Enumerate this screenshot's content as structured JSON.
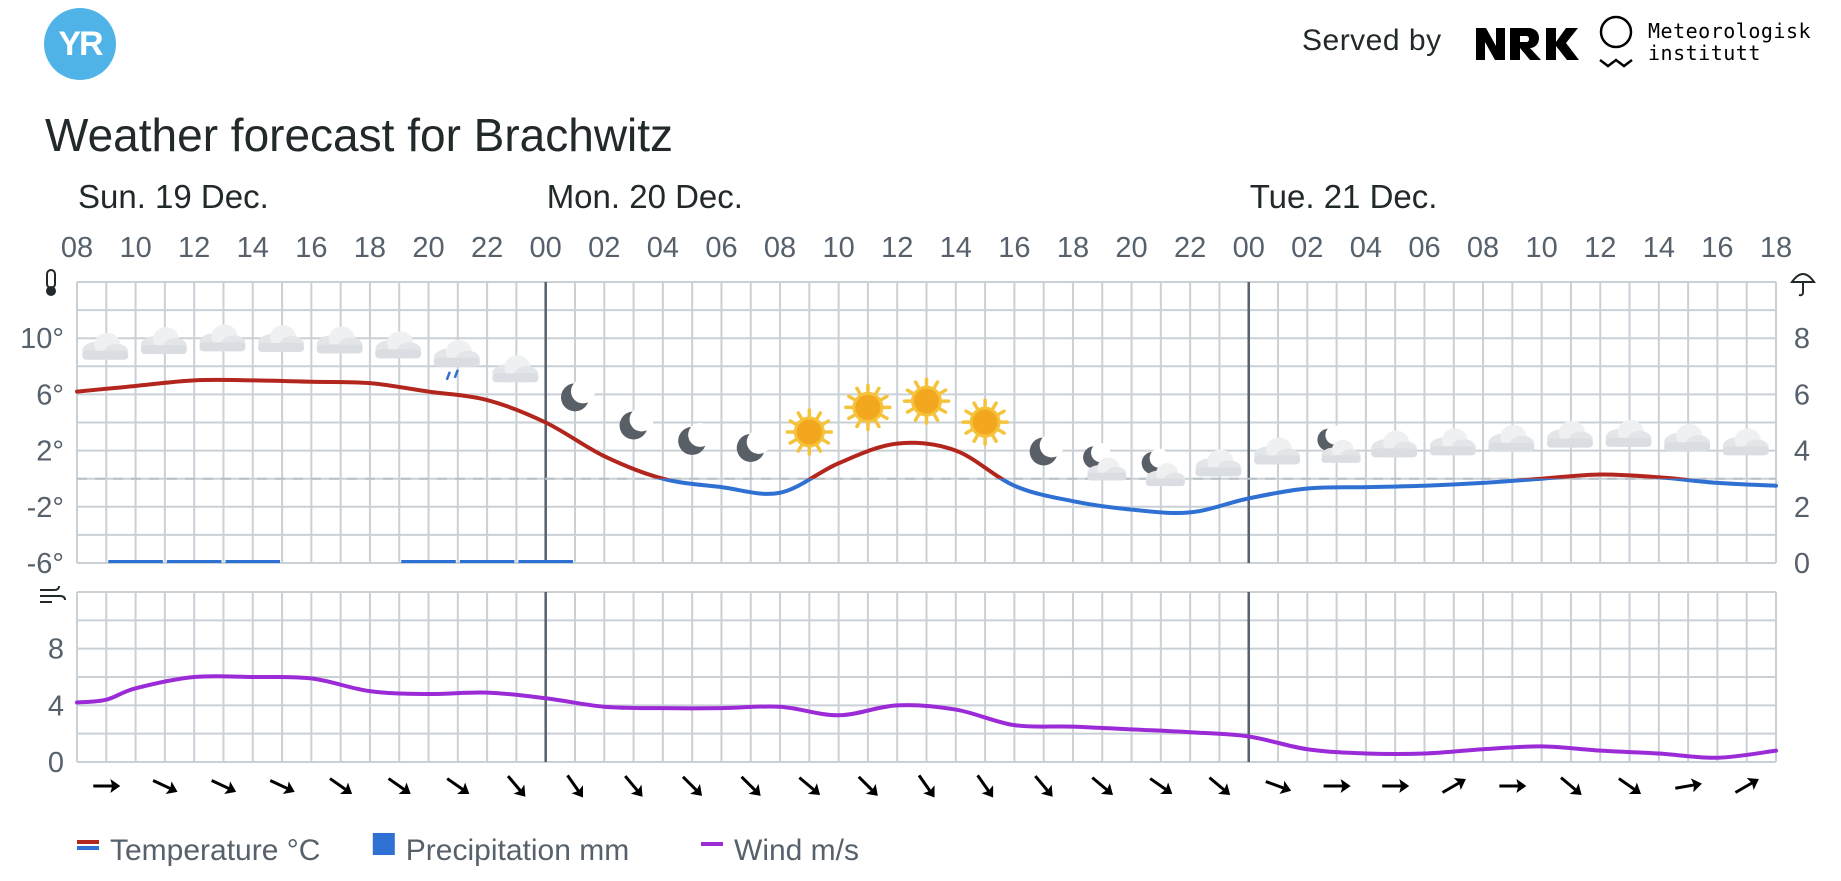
{
  "header": {
    "logo_text": "YR",
    "served_by": "Served by",
    "nrk_logo": "NRK",
    "met_line1": "Meteorologisk",
    "met_line2": "institutt"
  },
  "title": "Weather forecast for Brachwitz",
  "chart_data": {
    "type": "line",
    "days": [
      {
        "label": "Sun. 19 Dec.",
        "index": 0
      },
      {
        "label": "Mon. 20 Dec.",
        "index": 8
      },
      {
        "label": "Tue. 21 Dec.",
        "index": 20
      }
    ],
    "hours": [
      "08",
      "10",
      "12",
      "14",
      "16",
      "18",
      "20",
      "22",
      "00",
      "02",
      "04",
      "06",
      "08",
      "10",
      "12",
      "14",
      "16",
      "18",
      "20",
      "22",
      "00",
      "02",
      "04",
      "06",
      "08",
      "10",
      "12",
      "14",
      "16",
      "18"
    ],
    "temperature": {
      "name": "Temperature °C",
      "ylabels": [
        "10°",
        "6°",
        "2°",
        "-2°",
        "-6°"
      ],
      "yticks": [
        10,
        6,
        2,
        -2,
        -6
      ],
      "ylim": [
        -6,
        14
      ],
      "x": [
        0,
        0.5,
        1,
        2,
        3,
        4,
        5,
        6,
        7,
        8,
        9,
        10,
        11,
        12,
        13,
        14,
        15,
        16,
        17,
        18,
        19,
        20,
        21,
        22,
        23,
        24,
        25,
        26,
        27,
        28,
        29
      ],
      "values": [
        6.2,
        6.4,
        6.6,
        7.0,
        7.0,
        6.9,
        6.8,
        6.2,
        5.6,
        4.0,
        1.6,
        0.0,
        -0.6,
        -1.0,
        1.1,
        2.5,
        2.0,
        -0.5,
        -1.6,
        -2.2,
        -2.4,
        -1.4,
        -0.7,
        -0.6,
        -0.5,
        -0.3,
        0.0,
        0.3,
        0.1,
        -0.3,
        -0.5
      ],
      "color_warm": "#b3261e",
      "color_cold": "#2f70d3"
    },
    "precipitation": {
      "name": "Precipitation mm",
      "ylabels": [
        "8",
        "6",
        "4",
        "2",
        "0"
      ],
      "ylim": [
        0,
        10
      ],
      "bars": [
        {
          "x": 1,
          "value": 0.1
        },
        {
          "x": 2,
          "value": 0.1
        },
        {
          "x": 3,
          "value": 0.1
        },
        {
          "x": 6,
          "value": 0.1
        },
        {
          "x": 7,
          "value": 0.1
        },
        {
          "x": 8,
          "value": 0.1
        }
      ],
      "color": "#2f70d3"
    },
    "wind": {
      "name": "Wind m/s",
      "ylabels": [
        "8",
        "4",
        "0"
      ],
      "yticks": [
        8,
        4,
        0
      ],
      "ylim": [
        0,
        12
      ],
      "x": [
        0,
        0.5,
        1,
        2,
        3,
        4,
        5,
        6,
        7,
        8,
        9,
        10,
        11,
        12,
        13,
        14,
        15,
        16,
        17,
        18,
        19,
        20,
        21,
        22,
        23,
        24,
        25,
        26,
        27,
        28,
        29
      ],
      "values": [
        4.2,
        4.4,
        5.2,
        6.0,
        6.0,
        5.9,
        5.0,
        4.8,
        4.9,
        4.5,
        3.9,
        3.8,
        3.8,
        3.9,
        3.3,
        4.0,
        3.7,
        2.6,
        2.5,
        2.3,
        2.1,
        1.8,
        0.9,
        0.6,
        0.6,
        0.9,
        1.1,
        0.8,
        0.6,
        0.3,
        0.8
      ],
      "color": "#9b2bd6"
    },
    "weather_icons": [
      "cloudy",
      "cloudy",
      "cloudy",
      "cloudy",
      "cloudy",
      "cloudy",
      "light-rain",
      "cloudy",
      "clear-night",
      "clear-night",
      "clear-night",
      "clear-night",
      "clear-day",
      "clear-day",
      "clear-day",
      "clear-day",
      "clear-night",
      "partly-cloudy-night",
      "partly-cloudy-night",
      "cloudy",
      "cloudy",
      "partly-cloudy-night",
      "cloudy",
      "cloudy",
      "cloudy",
      "cloudy",
      "cloudy",
      "cloudy",
      "cloudy"
    ],
    "wind_arrows_deg": [
      0,
      25,
      25,
      25,
      35,
      35,
      35,
      50,
      55,
      50,
      45,
      45,
      40,
      45,
      55,
      55,
      50,
      40,
      35,
      40,
      20,
      0,
      0,
      -30,
      0,
      40,
      35,
      -10,
      -30
    ],
    "legend": [
      {
        "label": "Temperature °C",
        "swatch": "temperature"
      },
      {
        "label": "Precipitation mm",
        "swatch": "precipitation"
      },
      {
        "label": "Wind m/s",
        "swatch": "wind"
      }
    ],
    "colors": {
      "grid": "#c9d0d6",
      "day_divider": "#56616c",
      "zero_line": "#c9d0d6",
      "arrow": "#000000"
    },
    "icons": {
      "temperature_axis": "thermometer-icon",
      "precipitation_axis": "umbrella-icon",
      "wind_axis": "wind-icon"
    }
  }
}
